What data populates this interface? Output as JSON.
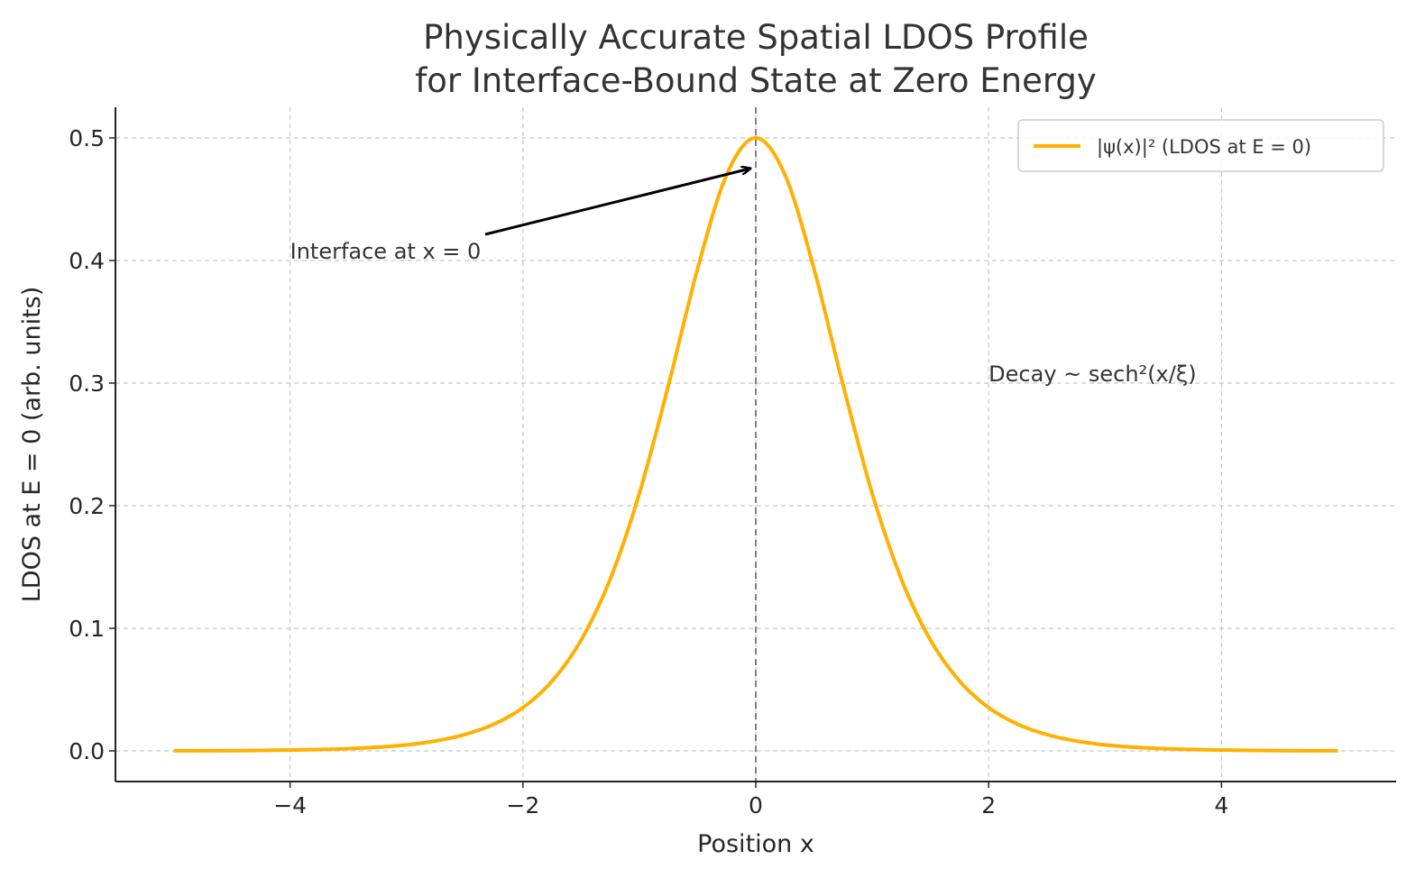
{
  "chart_data": {
    "type": "line",
    "title_line1": "Physically Accurate Spatial LDOS Profile",
    "title_line2": "for Interface-Bound State at Zero Energy",
    "xlabel": "Position x",
    "ylabel": "LDOS at E = 0 (arb. units)",
    "xlim": [
      -5.5,
      5.5
    ],
    "ylim": [
      -0.025,
      0.525
    ],
    "xticks": [
      -4,
      -2,
      0,
      2,
      4
    ],
    "xtick_labels": [
      "−4",
      "−2",
      "0",
      "2",
      "4"
    ],
    "yticks": [
      0.0,
      0.1,
      0.2,
      0.3,
      0.4,
      0.5
    ],
    "ytick_labels": [
      "0.0",
      "0.1",
      "0.2",
      "0.3",
      "0.4",
      "0.5"
    ],
    "grid": true,
    "legend_position": "top-right",
    "series": [
      {
        "name": "|ψ(x)|² (LDOS at E = 0)",
        "color": "#FFB000",
        "x": [
          -5,
          -4.75,
          -4.5,
          -4.25,
          -4,
          -3.75,
          -3.5,
          -3.25,
          -3,
          -2.75,
          -2.5,
          -2.25,
          -2,
          -1.75,
          -1.5,
          -1.25,
          -1,
          -0.75,
          -0.5,
          -0.25,
          0,
          0.25,
          0.5,
          0.75,
          1,
          1.25,
          1.5,
          1.75,
          2,
          2.25,
          2.5,
          2.75,
          3,
          3.25,
          3.5,
          3.75,
          4,
          4.25,
          4.5,
          4.75,
          5
        ],
        "y": [
          0.0001,
          0.0001,
          0.0002,
          0.0004,
          0.0007,
          0.0011,
          0.0018,
          0.003,
          0.0049,
          0.0081,
          0.0133,
          0.0217,
          0.0353,
          0.0569,
          0.0904,
          0.1402,
          0.21,
          0.2983,
          0.3932,
          0.47,
          0.5,
          0.47,
          0.3932,
          0.2983,
          0.21,
          0.1402,
          0.0904,
          0.0569,
          0.0353,
          0.0217,
          0.0133,
          0.0081,
          0.0049,
          0.003,
          0.0018,
          0.0011,
          0.0007,
          0.0004,
          0.0002,
          0.0001,
          0.0001
        ]
      }
    ],
    "vline": {
      "x": 0,
      "color": "#808080",
      "style": "dashed"
    },
    "annotations": [
      {
        "text": "Interface at x = 0",
        "x": -4,
        "y": 0.4,
        "arrow_to": [
          -0.05,
          0.475
        ]
      },
      {
        "text": "Decay  ~ sech²(x/ξ)",
        "x": 2,
        "y": 0.3
      }
    ]
  }
}
